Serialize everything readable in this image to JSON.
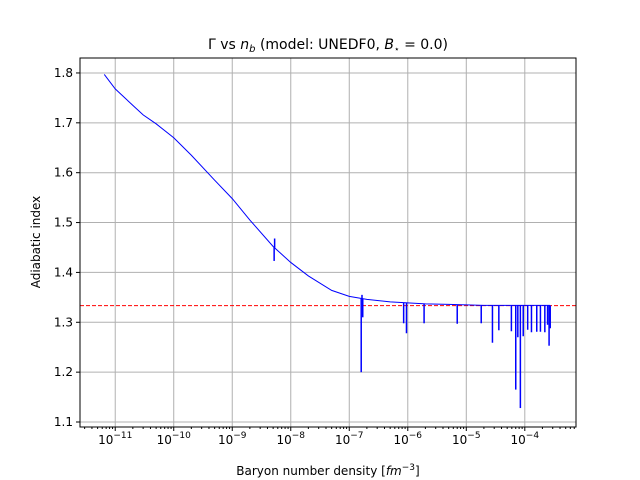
{
  "chart_data": {
    "type": "line",
    "title": "Γ vs n_b (model: UNEDF0, B⋆ = 0.0)",
    "title_parts": {
      "prefix": "Γ vs ",
      "var": "n",
      "var_sub": "b",
      "mid": " (model: UNEDF0, ",
      "b_var": "B",
      "b_sub": "⋆",
      "suffix": " = 0.0)"
    },
    "xlabel": "Baryon number density [fm⁻³]",
    "xlabel_parts": {
      "text": "Baryon number density [",
      "unit": "fm",
      "exp": "−3",
      "close": "]"
    },
    "ylabel": "Adiabatic index",
    "x_scale": "log",
    "xlim": [
      2.5e-12,
      0.00075
    ],
    "ylim": [
      1.09,
      1.83
    ],
    "x_tick_exponents": [
      -11,
      -10,
      -9,
      -8,
      -7,
      -6,
      -5,
      -4
    ],
    "x_tick_base": "10",
    "y_ticks": [
      "1.1",
      "1.2",
      "1.3",
      "1.4",
      "1.5",
      "1.6",
      "1.7",
      "1.8"
    ],
    "grid": true,
    "reference_line": {
      "y": 1.3333,
      "color": "#ff0000",
      "style": "dashed"
    },
    "series": [
      {
        "color": "#0000ff",
        "curve": [
          [
            6.5e-12,
            1.797
          ],
          [
            1e-11,
            1.768
          ],
          [
            2e-11,
            1.735
          ],
          [
            3e-11,
            1.716
          ],
          [
            5e-11,
            1.698
          ],
          [
            1e-10,
            1.67
          ],
          [
            2e-10,
            1.635
          ],
          [
            5e-10,
            1.585
          ],
          [
            1e-09,
            1.548
          ],
          [
            2e-09,
            1.505
          ],
          [
            5e-09,
            1.452
          ],
          [
            1e-08,
            1.42
          ],
          [
            2e-08,
            1.393
          ],
          [
            5e-08,
            1.364
          ],
          [
            1e-07,
            1.352
          ],
          [
            2e-07,
            1.346
          ],
          [
            5e-07,
            1.341
          ],
          [
            1e-06,
            1.339
          ],
          [
            2e-06,
            1.337
          ],
          [
            5e-06,
            1.336
          ],
          [
            1e-05,
            1.335
          ],
          [
            2e-05,
            1.334
          ],
          [
            5e-05,
            1.334
          ],
          [
            0.0001,
            1.334
          ],
          [
            0.0002,
            1.334
          ],
          [
            0.00027,
            1.334
          ]
        ],
        "spikes": [
          [
            5.2e-09,
            1.423
          ],
          [
            5.3e-09,
            1.468
          ],
          [
            1.6e-07,
            1.2
          ],
          [
            1.65e-07,
            1.355
          ],
          [
            1.7e-07,
            1.31
          ],
          [
            8.5e-07,
            1.298
          ],
          [
            9.5e-07,
            1.278
          ],
          [
            1.9e-06,
            1.298
          ],
          [
            7e-06,
            1.297
          ],
          [
            1.8e-05,
            1.298
          ],
          [
            2.8e-05,
            1.259
          ],
          [
            3.6e-05,
            1.284
          ],
          [
            5.9e-05,
            1.282
          ],
          [
            7e-05,
            1.165
          ],
          [
            7.6e-05,
            1.27
          ],
          [
            8.4e-05,
            1.128
          ],
          [
            9.4e-05,
            1.272
          ],
          [
            0.000112,
            1.285
          ],
          [
            0.00013,
            1.28
          ],
          [
            0.00016,
            1.281
          ],
          [
            0.000185,
            1.281
          ],
          [
            0.00022,
            1.28
          ],
          [
            0.000245,
            1.295
          ],
          [
            0.00026,
            1.253
          ],
          [
            0.000272,
            1.288
          ]
        ]
      }
    ]
  }
}
